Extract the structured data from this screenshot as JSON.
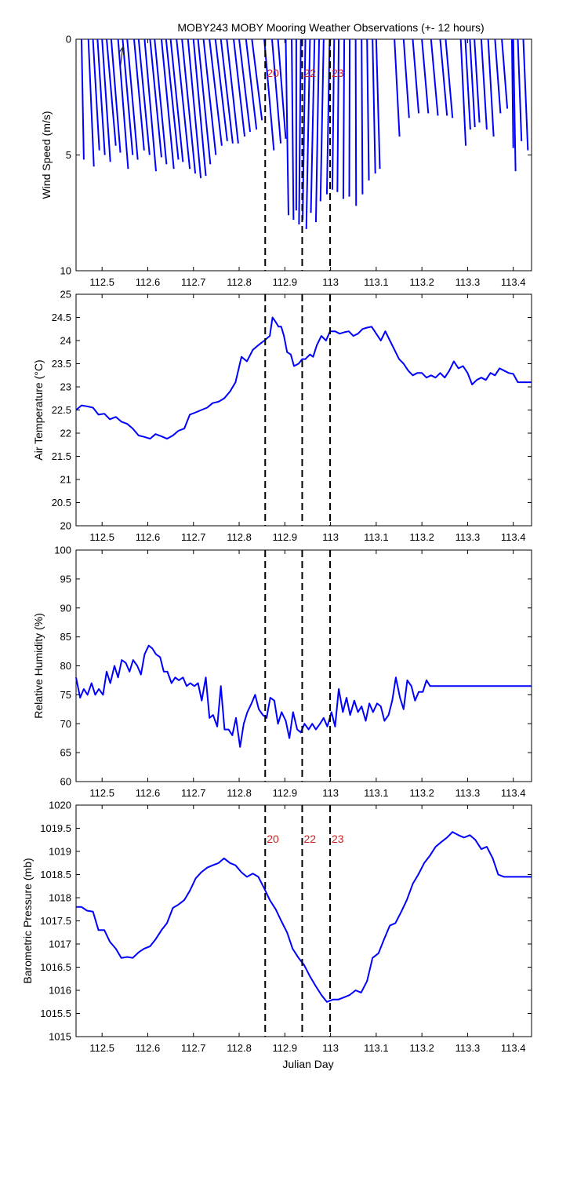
{
  "figure": {
    "title": "MOBY243 MOBY Mooring Weather Observations (+- 12 hours)",
    "xlabel": "Julian Day"
  },
  "colors": {
    "series": "#0000ff",
    "marker_label": "#cc2222",
    "axes": "#000000",
    "background": "#ffffff"
  },
  "markers": {
    "x": [
      112.857,
      112.938,
      112.999
    ],
    "labels": [
      "20",
      "22",
      "23"
    ]
  },
  "chart_data": [
    {
      "type": "line",
      "subtype": "wind-stick",
      "title": "MOBY243 MOBY Mooring Weather Observations (+- 12 hours)",
      "ylabel": "Wind Speed (m/s)",
      "ylim": [
        10,
        0
      ],
      "xlim": [
        112.443,
        113.44
      ],
      "yticks": [
        "0",
        "5",
        "10"
      ],
      "xticks": [
        "112.5",
        "112.6",
        "112.7",
        "112.8",
        "112.9",
        "113",
        "113.1",
        "113.2",
        "113.3",
        "113.4"
      ],
      "grid": false,
      "marker_labels_shown": true,
      "sticks": [
        {
          "x": 112.455,
          "x_end": 112.46,
          "speed": 5.2
        },
        {
          "x": 112.47,
          "x_end": 112.482,
          "speed": 5.5
        },
        {
          "x": 112.48,
          "x_end": 112.494,
          "speed": 4.8
        },
        {
          "x": 112.49,
          "x_end": 112.506,
          "speed": 5.0
        },
        {
          "x": 112.5,
          "x_end": 112.518,
          "speed": 5.3
        },
        {
          "x": 112.51,
          "x_end": 112.53,
          "speed": 4.6
        },
        {
          "x": 112.52,
          "x_end": 112.54,
          "speed": 4.9
        },
        {
          "x": 112.535,
          "x_end": 112.557,
          "speed": 5.6
        },
        {
          "x": 112.545,
          "x_end": 112.567,
          "speed": 5.0
        },
        {
          "x": 112.555,
          "x_end": 112.578,
          "speed": 5.2
        },
        {
          "x": 112.57,
          "x_end": 112.592,
          "speed": 4.8
        },
        {
          "x": 112.58,
          "x_end": 112.604,
          "speed": 5.0
        },
        {
          "x": 112.593,
          "x_end": 112.618,
          "speed": 5.7
        },
        {
          "x": 112.605,
          "x_end": 112.63,
          "speed": 5.1
        },
        {
          "x": 112.615,
          "x_end": 112.641,
          "speed": 5.4
        },
        {
          "x": 112.63,
          "x_end": 112.657,
          "speed": 5.6
        },
        {
          "x": 112.64,
          "x_end": 112.667,
          "speed": 5.2
        },
        {
          "x": 112.65,
          "x_end": 112.677,
          "speed": 5.3
        },
        {
          "x": 112.663,
          "x_end": 112.692,
          "speed": 5.6
        },
        {
          "x": 112.675,
          "x_end": 112.704,
          "speed": 5.8
        },
        {
          "x": 112.688,
          "x_end": 112.716,
          "speed": 6.0
        },
        {
          "x": 112.7,
          "x_end": 112.727,
          "speed": 5.9
        },
        {
          "x": 112.71,
          "x_end": 112.737,
          "speed": 5.4
        },
        {
          "x": 112.722,
          "x_end": 112.749,
          "speed": 5.0
        },
        {
          "x": 112.735,
          "x_end": 112.762,
          "speed": 4.6
        },
        {
          "x": 112.748,
          "x_end": 112.774,
          "speed": 4.4
        },
        {
          "x": 112.76,
          "x_end": 112.786,
          "speed": 4.5
        },
        {
          "x": 112.773,
          "x_end": 112.798,
          "speed": 4.5
        },
        {
          "x": 112.788,
          "x_end": 112.812,
          "speed": 4.2
        },
        {
          "x": 112.8,
          "x_end": 112.824,
          "speed": 4.0
        },
        {
          "x": 112.815,
          "x_end": 112.838,
          "speed": 3.9
        },
        {
          "x": 112.828,
          "x_end": 112.85,
          "speed": 3.5
        },
        {
          "x": 112.855,
          "x_end": 112.876,
          "speed": 4.8
        },
        {
          "x": 112.872,
          "x_end": 112.891,
          "speed": 4.5
        },
        {
          "x": 112.885,
          "x_end": 112.902,
          "speed": 4.3
        },
        {
          "x": 112.902,
          "x_end": 112.908,
          "speed": 7.6
        },
        {
          "x": 112.915,
          "x_end": 112.919,
          "speed": 7.8
        },
        {
          "x": 112.925,
          "x_end": 112.925,
          "speed": 7.4
        },
        {
          "x": 112.935,
          "x_end": 112.931,
          "speed": 8.0
        },
        {
          "x": 112.945,
          "x_end": 112.939,
          "speed": 7.8
        },
        {
          "x": 112.955,
          "x_end": 112.947,
          "speed": 8.2
        },
        {
          "x": 112.965,
          "x_end": 112.957,
          "speed": 7.5
        },
        {
          "x": 112.975,
          "x_end": 112.968,
          "speed": 7.9
        },
        {
          "x": 112.985,
          "x_end": 112.978,
          "speed": 7.0
        },
        {
          "x": 112.998,
          "x_end": 112.992,
          "speed": 6.7
        },
        {
          "x": 113.008,
          "x_end": 113.004,
          "speed": 6.5
        },
        {
          "x": 113.018,
          "x_end": 113.015,
          "speed": 6.6
        },
        {
          "x": 113.03,
          "x_end": 113.028,
          "speed": 6.9
        },
        {
          "x": 113.042,
          "x_end": 113.041,
          "speed": 6.8
        },
        {
          "x": 113.055,
          "x_end": 113.056,
          "speed": 7.2
        },
        {
          "x": 113.068,
          "x_end": 113.07,
          "speed": 6.7
        },
        {
          "x": 113.08,
          "x_end": 113.084,
          "speed": 6.1
        },
        {
          "x": 113.092,
          "x_end": 113.098,
          "speed": 5.8
        },
        {
          "x": 113.1,
          "x_end": 113.108,
          "speed": 5.6
        },
        {
          "x": 113.14,
          "x_end": 113.151,
          "speed": 4.2
        },
        {
          "x": 113.16,
          "x_end": 113.172,
          "speed": 3.4
        },
        {
          "x": 113.18,
          "x_end": 113.193,
          "speed": 3.2
        },
        {
          "x": 113.2,
          "x_end": 113.214,
          "speed": 3.2
        },
        {
          "x": 113.22,
          "x_end": 113.235,
          "speed": 3.3
        },
        {
          "x": 113.24,
          "x_end": 113.255,
          "speed": 3.3
        },
        {
          "x": 113.252,
          "x_end": 113.267,
          "speed": 3.4
        },
        {
          "x": 113.285,
          "x_end": 113.296,
          "speed": 4.6
        },
        {
          "x": 113.295,
          "x_end": 113.306,
          "speed": 3.9
        },
        {
          "x": 113.305,
          "x_end": 113.316,
          "speed": 3.8
        },
        {
          "x": 113.315,
          "x_end": 113.326,
          "speed": 3.6
        },
        {
          "x": 113.33,
          "x_end": 113.342,
          "speed": 3.9
        },
        {
          "x": 113.345,
          "x_end": 113.357,
          "speed": 4.2
        },
        {
          "x": 113.36,
          "x_end": 113.372,
          "speed": 3.2
        },
        {
          "x": 113.375,
          "x_end": 113.387,
          "speed": 3.0
        },
        {
          "x": 113.397,
          "x_end": 113.4,
          "speed": 4.7
        },
        {
          "x": 113.4,
          "x_end": 113.405,
          "speed": 5.7
        },
        {
          "x": 113.41,
          "x_end": 113.418,
          "speed": 4.4
        },
        {
          "x": 113.422,
          "x_end": 113.432,
          "speed": 4.8
        }
      ]
    },
    {
      "type": "line",
      "ylabel": "Air Temperature (°C)",
      "ylim": [
        20,
        25
      ],
      "xlim": [
        112.443,
        113.44
      ],
      "yticks": [
        "20",
        "20.5",
        "21",
        "21.5",
        "22",
        "22.5",
        "23",
        "23.5",
        "24",
        "24.5",
        "25"
      ],
      "xticks": [
        "112.5",
        "112.6",
        "112.7",
        "112.8",
        "112.9",
        "113",
        "113.1",
        "113.2",
        "113.3",
        "113.4"
      ],
      "grid": false,
      "marker_labels_shown": false,
      "x": [
        112.443,
        112.455,
        112.467,
        112.48,
        112.492,
        112.505,
        112.517,
        112.53,
        112.542,
        112.555,
        112.567,
        112.58,
        112.592,
        112.605,
        112.617,
        112.63,
        112.642,
        112.655,
        112.667,
        112.68,
        112.692,
        112.705,
        112.717,
        112.73,
        112.742,
        112.755,
        112.767,
        112.78,
        112.792,
        112.805,
        112.817,
        112.83,
        112.842,
        112.855,
        112.867,
        112.873,
        112.88,
        112.886,
        112.892,
        112.898,
        112.905,
        112.913,
        112.92,
        112.93,
        112.938,
        112.945,
        112.955,
        112.962,
        112.97,
        112.98,
        112.99,
        112.999,
        113.01,
        113.02,
        113.03,
        113.04,
        113.05,
        113.06,
        113.07,
        113.08,
        113.09,
        113.1,
        113.11,
        113.12,
        113.13,
        113.14,
        113.15,
        113.16,
        113.17,
        113.18,
        113.19,
        113.2,
        113.21,
        113.22,
        113.23,
        113.24,
        113.25,
        113.26,
        113.27,
        113.28,
        113.29,
        113.3,
        113.31,
        113.32,
        113.33,
        113.34,
        113.35,
        113.36,
        113.37,
        113.38,
        113.39,
        113.4,
        113.41,
        113.42,
        113.43,
        113.44
      ],
      "values": [
        22.5,
        22.6,
        22.58,
        22.55,
        22.4,
        22.42,
        22.3,
        22.35,
        22.25,
        22.2,
        22.1,
        21.95,
        21.92,
        21.88,
        21.98,
        21.93,
        21.88,
        21.95,
        22.05,
        22.1,
        22.4,
        22.45,
        22.5,
        22.55,
        22.65,
        22.68,
        22.75,
        22.9,
        23.1,
        23.65,
        23.55,
        23.8,
        23.9,
        24.0,
        24.1,
        24.5,
        24.4,
        24.3,
        24.3,
        24.1,
        23.75,
        23.7,
        23.45,
        23.5,
        23.6,
        23.6,
        23.7,
        23.65,
        23.9,
        24.1,
        24.0,
        24.2,
        24.2,
        24.15,
        24.18,
        24.2,
        24.1,
        24.15,
        24.25,
        24.28,
        24.3,
        24.15,
        24.0,
        24.2,
        24.0,
        23.8,
        23.6,
        23.5,
        23.35,
        23.25,
        23.3,
        23.3,
        23.2,
        23.25,
        23.2,
        23.3,
        23.2,
        23.35,
        23.55,
        23.4,
        23.45,
        23.3,
        23.05,
        23.15,
        23.2,
        23.15,
        23.3,
        23.25,
        23.4,
        23.35,
        23.3,
        23.28,
        23.1,
        23.1,
        23.1,
        23.1
      ]
    },
    {
      "type": "line",
      "ylabel": "Relative Humidity (%)",
      "ylim": [
        60,
        100
      ],
      "xlim": [
        112.443,
        113.44
      ],
      "yticks": [
        "60",
        "65",
        "70",
        "75",
        "80",
        "85",
        "90",
        "95",
        "100"
      ],
      "xticks": [
        "112.5",
        "112.6",
        "112.7",
        "112.8",
        "112.9",
        "113",
        "113.1",
        "113.2",
        "113.3",
        "113.4"
      ],
      "grid": false,
      "marker_labels_shown": false,
      "x": [
        112.443,
        112.452,
        112.46,
        112.468,
        112.477,
        112.485,
        112.493,
        112.502,
        112.51,
        112.518,
        112.527,
        112.535,
        112.543,
        112.552,
        112.56,
        112.568,
        112.577,
        112.585,
        112.593,
        112.602,
        112.61,
        112.618,
        112.627,
        112.635,
        112.643,
        112.652,
        112.66,
        112.668,
        112.677,
        112.685,
        112.693,
        112.702,
        112.71,
        112.718,
        112.727,
        112.735,
        112.743,
        112.752,
        112.76,
        112.768,
        112.777,
        112.785,
        112.793,
        112.802,
        112.81,
        112.818,
        112.827,
        112.835,
        112.843,
        112.852,
        112.86,
        112.868,
        112.877,
        112.885,
        112.893,
        112.902,
        112.91,
        112.918,
        112.927,
        112.935,
        112.943,
        112.952,
        112.96,
        112.968,
        112.977,
        112.985,
        112.993,
        113.002,
        113.01,
        113.018,
        113.027,
        113.035,
        113.043,
        113.052,
        113.06,
        113.068,
        113.077,
        113.085,
        113.093,
        113.102,
        113.11,
        113.118,
        113.127,
        113.135,
        113.143,
        113.152,
        113.16,
        113.168,
        113.177,
        113.185,
        113.193,
        113.202,
        113.21,
        113.218,
        113.227,
        113.235,
        113.243,
        113.252,
        113.26,
        113.268,
        113.277,
        113.285,
        113.293,
        113.302,
        113.31,
        113.318,
        113.327,
        113.335,
        113.343,
        113.352,
        113.36,
        113.368,
        113.377,
        113.385,
        113.393,
        113.402,
        113.41,
        113.418,
        113.427,
        113.435,
        113.44
      ],
      "values": [
        78,
        74.5,
        76,
        75,
        77,
        75,
        76,
        75,
        79,
        77,
        80,
        78,
        81,
        80.5,
        79,
        81,
        80,
        78.5,
        82,
        83.5,
        83,
        82,
        81.5,
        79,
        79,
        77,
        78,
        77.5,
        78,
        76.5,
        77,
        76.5,
        77,
        74,
        78,
        71,
        71.5,
        69.5,
        76.5,
        69,
        69,
        68,
        71,
        66,
        70,
        72,
        73.5,
        75,
        72.5,
        71.5,
        71,
        74.5,
        74,
        70,
        72,
        70.5,
        67.5,
        72,
        69,
        68.5,
        70,
        69,
        70,
        69,
        70,
        71,
        69.5,
        72,
        69.5,
        76,
        72,
        74.5,
        71.5,
        74,
        72,
        73,
        70.5,
        73.5,
        72,
        73.5,
        73,
        70.5,
        71.5,
        74,
        78,
        74.5,
        72.5,
        77.5,
        76.5,
        74,
        75.5,
        75.5,
        77.5,
        76.5,
        76.5,
        76.5,
        76.5,
        76.5,
        76.5,
        76.5,
        76.5,
        76.5,
        76.5,
        76.5,
        76.5,
        76.5,
        76.5,
        76.5,
        76.5,
        76.5,
        76.5,
        76.5,
        76.5,
        76.5,
        76.5,
        76.5,
        76.5,
        76.5,
        76.5,
        76.5,
        76.5
      ]
    },
    {
      "type": "line",
      "ylabel": "Barometric Pressure (mb)",
      "ylim": [
        1015,
        1020
      ],
      "xlim": [
        112.443,
        113.44
      ],
      "yticks": [
        "1015",
        "1015.5",
        "1016",
        "1016.5",
        "1017",
        "1017.5",
        "1018",
        "1018.5",
        "1019",
        "1019.5",
        "1020"
      ],
      "xticks": [
        "112.5",
        "112.6",
        "112.7",
        "112.8",
        "112.9",
        "113",
        "113.1",
        "113.2",
        "113.3",
        "113.4"
      ],
      "xlabel": "Julian Day",
      "grid": false,
      "marker_labels_shown": true,
      "x": [
        112.443,
        112.455,
        112.467,
        112.48,
        112.492,
        112.505,
        112.517,
        112.53,
        112.542,
        112.555,
        112.567,
        112.58,
        112.592,
        112.605,
        112.617,
        112.63,
        112.642,
        112.655,
        112.667,
        112.68,
        112.692,
        112.705,
        112.717,
        112.73,
        112.742,
        112.755,
        112.767,
        112.78,
        112.792,
        112.805,
        112.817,
        112.83,
        112.842,
        112.855,
        112.867,
        112.88,
        112.892,
        112.905,
        112.917,
        112.93,
        112.942,
        112.955,
        112.967,
        112.98,
        112.992,
        113.005,
        113.017,
        113.03,
        113.042,
        113.055,
        113.067,
        113.08,
        113.092,
        113.105,
        113.117,
        113.13,
        113.142,
        113.155,
        113.167,
        113.18,
        113.192,
        113.205,
        113.217,
        113.23,
        113.242,
        113.255,
        113.267,
        113.28,
        113.292,
        113.305,
        113.317,
        113.33,
        113.342,
        113.355,
        113.367,
        113.38,
        113.392,
        113.405,
        113.417,
        113.43,
        113.44
      ],
      "values": [
        1017.8,
        1017.8,
        1017.72,
        1017.7,
        1017.3,
        1017.3,
        1017.05,
        1016.9,
        1016.7,
        1016.72,
        1016.7,
        1016.82,
        1016.9,
        1016.95,
        1017.1,
        1017.3,
        1017.45,
        1017.78,
        1017.85,
        1017.95,
        1018.15,
        1018.42,
        1018.55,
        1018.65,
        1018.7,
        1018.75,
        1018.85,
        1018.75,
        1018.7,
        1018.55,
        1018.45,
        1018.52,
        1018.45,
        1018.2,
        1017.95,
        1017.75,
        1017.5,
        1017.25,
        1016.9,
        1016.7,
        1016.55,
        1016.3,
        1016.1,
        1015.9,
        1015.75,
        1015.8,
        1015.8,
        1015.85,
        1015.9,
        1016.0,
        1015.95,
        1016.2,
        1016.7,
        1016.8,
        1017.1,
        1017.4,
        1017.45,
        1017.7,
        1017.95,
        1018.3,
        1018.5,
        1018.75,
        1018.9,
        1019.1,
        1019.2,
        1019.3,
        1019.42,
        1019.35,
        1019.3,
        1019.35,
        1019.25,
        1019.05,
        1019.1,
        1018.85,
        1018.5,
        1018.45,
        1018.45,
        1018.45,
        1018.45,
        1018.45,
        1018.45
      ]
    }
  ]
}
